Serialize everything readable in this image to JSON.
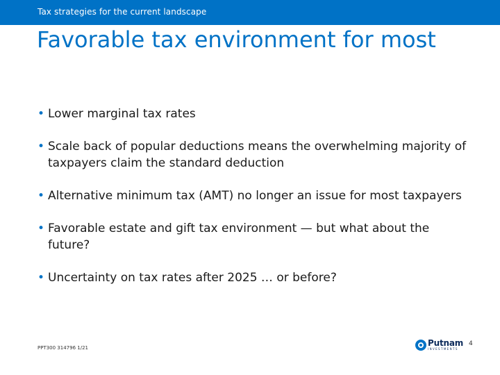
{
  "header": {
    "banner_text": "Tax strategies for the current landscape"
  },
  "slide": {
    "title": "Favorable tax environment for most",
    "bullets": [
      "Lower marginal tax rates",
      "Scale back of popular deductions means the overwhelming majority of taxpayers claim the standard deduction",
      "Alternative minimum tax (AMT) no longer an issue for most taxpayers",
      "Favorable estate and gift tax environment — but what about the future?",
      "Uncertainty on tax rates after 2025 … or before?"
    ]
  },
  "footer": {
    "code": "PPT300 314796 1/21",
    "logo_text": "Putnam",
    "logo_subtext": "INVESTMENTS",
    "page_number": "4"
  },
  "colors": {
    "brand_blue": "#0072c6",
    "logo_navy": "#0b2a5b",
    "background": "#ffffff",
    "body_text": "#1a1a1a"
  },
  "icons": {
    "logo_mark": "putnam-logo-icon"
  }
}
